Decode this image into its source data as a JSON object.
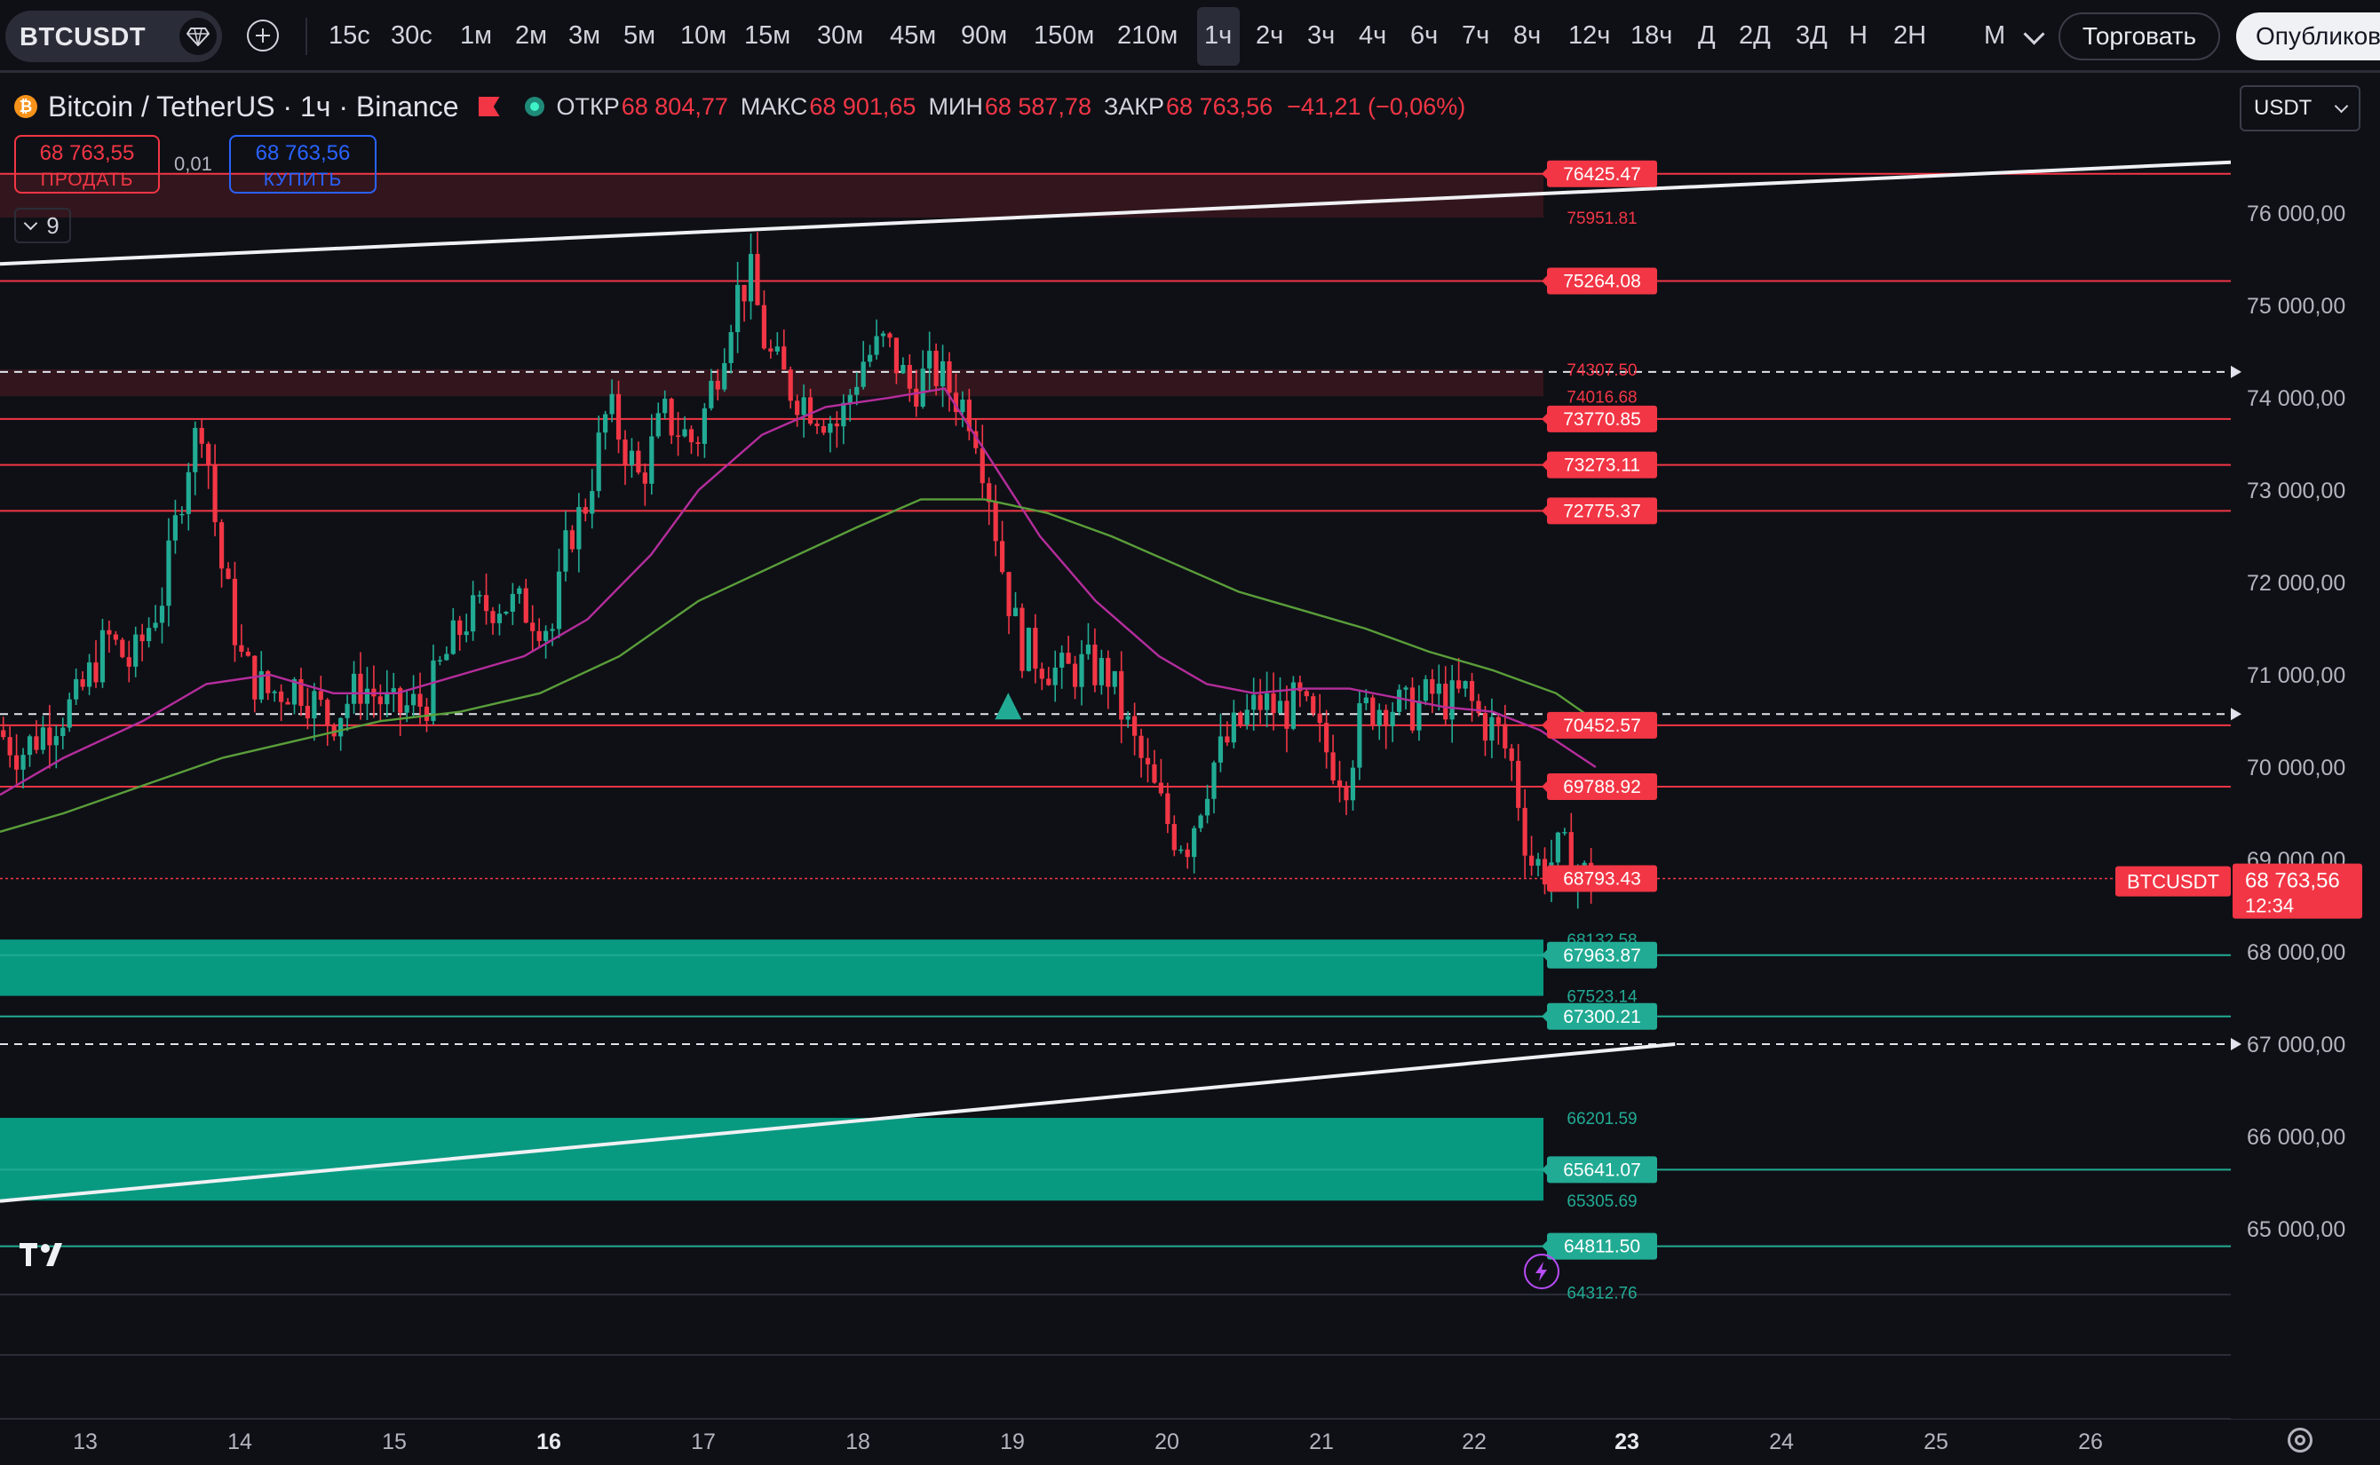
{
  "toolbar": {
    "symbol": "BTCUSDT",
    "intervals": [
      "15с",
      "30с",
      "1м",
      "2м",
      "3м",
      "5м",
      "10м",
      "15м",
      "30м",
      "45м",
      "90м",
      "150м",
      "210м",
      "1ч",
      "2ч",
      "3ч",
      "4ч",
      "6ч",
      "7ч",
      "8ч",
      "12ч",
      "18ч",
      "Д",
      "2Д",
      "3Д",
      "Н",
      "2Н",
      "М"
    ],
    "active_interval": "1ч",
    "trade_label": "Торговать",
    "publish_label": "Опубликов"
  },
  "legend": {
    "coin_letter": "₿",
    "title": "Bitcoin / TetherUS · 1ч · Binance",
    "open_label": "ОТКР",
    "open_value": "68 804,77",
    "high_label": "МАКС",
    "high_value": "68 901,65",
    "low_label": "МИН",
    "low_value": "68 587,78",
    "close_label": "ЗАКР",
    "close_value": "68 763,56",
    "change": "−41,21 (−0,06%)"
  },
  "order": {
    "sell_price": "68 763,55",
    "sell_label": "ПРОДАТЬ",
    "spread": "0,01",
    "buy_price": "68 763,56",
    "buy_label": "КУПИТЬ"
  },
  "indicators_count": "9",
  "currency": "USDT",
  "colors": {
    "up": "#22ab94",
    "down": "#f23645",
    "level_red": "#f23645",
    "level_green": "#22ab94",
    "ma_fast": "#b52d9c",
    "ma_slow": "#5a9e3a",
    "background": "#0f1016"
  },
  "chart_data": {
    "type": "candlestick",
    "symbol": "BTCUSDT",
    "timeframe": "1ч",
    "ylim": [
      64500,
      77200
    ],
    "y_ticks": [
      "76 000,00",
      "75 000,00",
      "74 000,00",
      "73 000,00",
      "72 000,00",
      "71 000,00",
      "70 000,00",
      "69 000,00",
      "68 000,00",
      "67 000,00",
      "66 000,00",
      "65 000,00"
    ],
    "y_tick_values": [
      76000,
      75000,
      74000,
      73000,
      72000,
      71000,
      70000,
      69000,
      68000,
      67000,
      66000,
      65000
    ],
    "x_ticks": [
      "13",
      "14",
      "15",
      "16",
      "17",
      "18",
      "19",
      "20",
      "21",
      "22",
      "23",
      "24",
      "25",
      "26"
    ],
    "bold_x_ticks": [
      "16",
      "23"
    ],
    "close_path": [
      [
        12.4,
        70400
      ],
      [
        12.55,
        70150
      ],
      [
        12.75,
        70500
      ],
      [
        12.9,
        70700
      ],
      [
        13.1,
        71400
      ],
      [
        13.25,
        71100
      ],
      [
        13.45,
        71900
      ],
      [
        13.6,
        73300
      ],
      [
        13.7,
        73800
      ],
      [
        13.8,
        72300
      ],
      [
        13.95,
        71100
      ],
      [
        14.1,
        70800
      ],
      [
        14.3,
        70900
      ],
      [
        14.5,
        70500
      ],
      [
        14.7,
        70900
      ],
      [
        14.9,
        70600
      ],
      [
        15.1,
        70700
      ],
      [
        15.2,
        71100
      ],
      [
        15.35,
        71600
      ],
      [
        15.55,
        71800
      ],
      [
        15.75,
        71700
      ],
      [
        15.9,
        71500
      ],
      [
        16.0,
        72500
      ],
      [
        16.1,
        72800
      ],
      [
        16.25,
        73900
      ],
      [
        16.45,
        73100
      ],
      [
        16.6,
        73800
      ],
      [
        16.8,
        73500
      ],
      [
        16.95,
        74400
      ],
      [
        17.05,
        75100
      ],
      [
        17.15,
        75300
      ],
      [
        17.25,
        74500
      ],
      [
        17.4,
        74100
      ],
      [
        17.55,
        73900
      ],
      [
        17.7,
        73700
      ],
      [
        17.85,
        74400
      ],
      [
        18.0,
        74600
      ],
      [
        18.15,
        74100
      ],
      [
        18.3,
        74300
      ],
      [
        18.45,
        74000
      ],
      [
        18.55,
        73800
      ],
      [
        18.65,
        73000
      ],
      [
        18.75,
        72000
      ],
      [
        18.85,
        71300
      ],
      [
        18.95,
        71200
      ],
      [
        19.1,
        71000
      ],
      [
        19.25,
        71100
      ],
      [
        19.4,
        71000
      ],
      [
        19.55,
        70300
      ],
      [
        19.7,
        69700
      ],
      [
        19.8,
        69300
      ],
      [
        19.9,
        69200
      ],
      [
        20.05,
        70000
      ],
      [
        20.2,
        70400
      ],
      [
        20.35,
        70700
      ],
      [
        20.5,
        70600
      ],
      [
        20.6,
        70700
      ],
      [
        20.7,
        70400
      ],
      [
        20.8,
        70100
      ],
      [
        20.9,
        69900
      ],
      [
        21.0,
        70600
      ],
      [
        21.15,
        70700
      ],
      [
        21.3,
        70600
      ],
      [
        21.45,
        70800
      ],
      [
        21.55,
        70700
      ],
      [
        21.65,
        70800
      ],
      [
        21.75,
        70500
      ],
      [
        21.85,
        70400
      ],
      [
        21.95,
        70000
      ],
      [
        22.05,
        69000
      ],
      [
        22.15,
        68900
      ],
      [
        22.25,
        69100
      ],
      [
        22.35,
        68900
      ],
      [
        22.45,
        68760
      ]
    ],
    "ma_fast_path": [
      [
        12.4,
        69700
      ],
      [
        12.8,
        70100
      ],
      [
        13.3,
        70500
      ],
      [
        13.7,
        70900
      ],
      [
        14.1,
        71000
      ],
      [
        14.5,
        70800
      ],
      [
        14.9,
        70800
      ],
      [
        15.3,
        71000
      ],
      [
        15.7,
        71200
      ],
      [
        16.1,
        71600
      ],
      [
        16.5,
        72300
      ],
      [
        16.8,
        73000
      ],
      [
        17.2,
        73600
      ],
      [
        17.6,
        73900
      ],
      [
        18.0,
        74000
      ],
      [
        18.35,
        74100
      ],
      [
        18.65,
        73300
      ],
      [
        18.95,
        72500
      ],
      [
        19.3,
        71800
      ],
      [
        19.7,
        71200
      ],
      [
        20.0,
        70900
      ],
      [
        20.3,
        70800
      ],
      [
        20.6,
        70850
      ],
      [
        20.9,
        70850
      ],
      [
        21.2,
        70750
      ],
      [
        21.5,
        70650
      ],
      [
        21.8,
        70600
      ],
      [
        22.1,
        70400
      ],
      [
        22.45,
        70000
      ]
    ],
    "ma_slow_path": [
      [
        12.4,
        69300
      ],
      [
        12.8,
        69500
      ],
      [
        13.3,
        69800
      ],
      [
        13.8,
        70100
      ],
      [
        14.3,
        70300
      ],
      [
        14.8,
        70500
      ],
      [
        15.3,
        70600
      ],
      [
        15.8,
        70800
      ],
      [
        16.3,
        71200
      ],
      [
        16.8,
        71800
      ],
      [
        17.3,
        72200
      ],
      [
        17.8,
        72600
      ],
      [
        18.2,
        72900
      ],
      [
        18.6,
        72900
      ],
      [
        19.0,
        72750
      ],
      [
        19.4,
        72500
      ],
      [
        19.8,
        72200
      ],
      [
        20.2,
        71900
      ],
      [
        20.6,
        71700
      ],
      [
        21.0,
        71500
      ],
      [
        21.4,
        71250
      ],
      [
        21.8,
        71050
      ],
      [
        22.2,
        70800
      ],
      [
        22.45,
        70500
      ]
    ],
    "last_price": "68 763,56",
    "last_price_label": "BTCUSDT",
    "countdown": "12:34",
    "levels_red": [
      "76425.47",
      "75264.08",
      "73770.85",
      "73273.11",
      "72775.37",
      "70452.57",
      "69788.92",
      "68793.43"
    ],
    "levels_red_values": [
      76425.47,
      75264.08,
      73770.85,
      73273.11,
      72775.37,
      70452.57,
      69788.92,
      68793.43
    ],
    "levels_green": [
      "67963.87",
      "67300.21",
      "65641.07",
      "64811.50"
    ],
    "levels_green_values": [
      67963.87,
      67300.21,
      65641.07,
      64811.5
    ],
    "small_labels": [
      "75951.81",
      "74307.50",
      "74016.68",
      "68132.58",
      "67523.14",
      "66201.59",
      "65305.69",
      "64312.76"
    ],
    "small_label_values": [
      75951.81,
      74307.5,
      74016.68,
      68132.58,
      67523.14,
      66201.59,
      65305.69,
      64312.76
    ],
    "dashed_levels": [
      74280,
      70575,
      67000
    ],
    "trend_upper": [
      [
        12.4,
        75450
      ],
      [
        26.45,
        76550
      ]
    ],
    "trend_lower": [
      [
        12.4,
        65300
      ],
      [
        22.95,
        67000
      ]
    ],
    "marker_triangle": [
      18.75,
      70575
    ]
  }
}
